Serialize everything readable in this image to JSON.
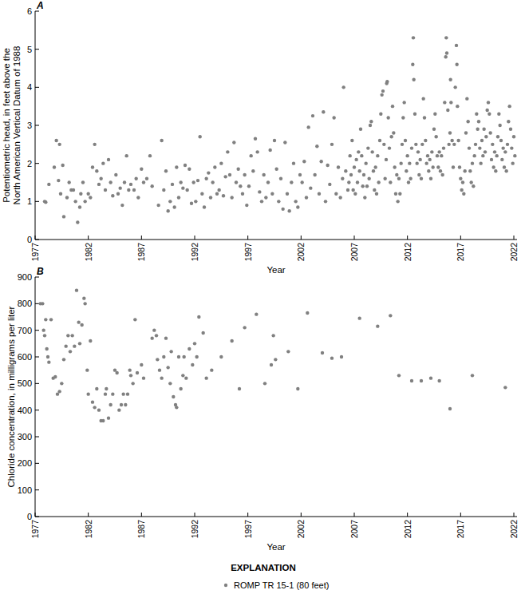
{
  "chart_data": [
    {
      "type": "scatter",
      "title": "A",
      "xlabel": "Year",
      "ylabel": "Potentiometric head, in feet above the North American Vertical Datum of 1988",
      "xlim": [
        1977,
        2022.3
      ],
      "xticks": [
        1977,
        1982,
        1987,
        1992,
        1997,
        2002,
        2007,
        2012,
        2017,
        2022
      ],
      "ylim": [
        0,
        6
      ],
      "yticks": [
        0,
        1,
        2,
        3,
        4,
        5,
        6
      ],
      "grid": false,
      "marker": "circle",
      "series": [
        {
          "color": "#808080",
          "x": [
            1977.9,
            1978.0,
            1978.3,
            1978.8,
            1979.0,
            1979.2,
            1979.3,
            1979.4,
            1979.6,
            1979.7,
            1980.0,
            1980.2,
            1980.4,
            1980.6,
            1980.8,
            1981.0,
            1981.2,
            1981.3,
            1981.5,
            1981.7,
            1982.0,
            1982.2,
            1982.4,
            1982.6,
            1982.8,
            1983.0,
            1983.2,
            1983.4,
            1983.6,
            1983.9,
            1984.1,
            1984.3,
            1984.6,
            1984.8,
            1985.0,
            1985.2,
            1985.4,
            1985.6,
            1985.8,
            1986.0,
            1986.3,
            1986.5,
            1986.7,
            1987.0,
            1987.2,
            1987.5,
            1987.8,
            1988.0,
            1988.6,
            1988.9,
            1989.1,
            1989.3,
            1989.5,
            1989.7,
            1989.9,
            1990.1,
            1990.3,
            1990.5,
            1990.7,
            1990.9,
            1991.1,
            1991.3,
            1991.5,
            1991.7,
            1991.9,
            1992.1,
            1992.3,
            1992.5,
            1992.7,
            1992.9,
            1993.1,
            1993.3,
            1993.5,
            1993.7,
            1993.9,
            1994.1,
            1994.3,
            1994.5,
            1994.7,
            1994.9,
            1995.1,
            1995.3,
            1995.5,
            1995.7,
            1995.9,
            1996.1,
            1996.3,
            1996.5,
            1996.7,
            1996.9,
            1997.1,
            1997.3,
            1997.5,
            1997.7,
            1997.9,
            1998.1,
            1998.3,
            1998.5,
            1998.7,
            1998.9,
            1999.1,
            1999.3,
            1999.5,
            1999.7,
            1999.9,
            2000.1,
            2000.3,
            2000.5,
            2000.7,
            2000.9,
            2001.1,
            2001.3,
            2001.5,
            2001.7,
            2001.9,
            2002.1,
            2002.3,
            2002.5,
            2002.7,
            2002.9,
            2003.1,
            2003.3,
            2003.5,
            2003.7,
            2003.9,
            2004.1,
            2004.3,
            2004.5,
            2004.7,
            2004.9,
            2005.1,
            2005.3,
            2005.5,
            2005.7,
            2005.9,
            2006.0,
            2006.2,
            2006.4,
            2006.5,
            2006.6,
            2006.7,
            2006.8,
            2006.9,
            2007.0,
            2007.1,
            2007.2,
            2007.3,
            2007.4,
            2007.5,
            2007.6,
            2007.7,
            2007.8,
            2007.9,
            2008.0,
            2008.1,
            2008.2,
            2008.3,
            2008.4,
            2008.5,
            2008.6,
            2008.7,
            2008.8,
            2008.9,
            2009.0,
            2009.1,
            2009.2,
            2009.3,
            2009.4,
            2009.5,
            2009.6,
            2009.7,
            2009.8,
            2009.9,
            2010.0,
            2010.05,
            2010.1,
            2010.2,
            2010.3,
            2010.4,
            2010.5,
            2010.6,
            2010.7,
            2010.8,
            2010.9,
            2011.0,
            2011.1,
            2011.2,
            2011.3,
            2011.4,
            2011.5,
            2011.6,
            2011.7,
            2011.8,
            2011.9,
            2012.0,
            2012.1,
            2012.2,
            2012.3,
            2012.4,
            2012.5,
            2012.55,
            2012.6,
            2012.7,
            2012.8,
            2012.9,
            2013.0,
            2013.1,
            2013.2,
            2013.3,
            2013.4,
            2013.5,
            2013.6,
            2013.7,
            2013.8,
            2013.9,
            2014.0,
            2014.1,
            2014.2,
            2014.3,
            2014.4,
            2014.5,
            2014.6,
            2014.7,
            2014.8,
            2014.9,
            2015.0,
            2015.1,
            2015.2,
            2015.3,
            2015.4,
            2015.5,
            2015.6,
            2015.65,
            2015.7,
            2015.8,
            2015.9,
            2016.0,
            2016.05,
            2016.1,
            2016.2,
            2016.3,
            2016.4,
            2016.5,
            2016.6,
            2016.65,
            2016.7,
            2016.8,
            2016.9,
            2017.0,
            2017.1,
            2017.2,
            2017.3,
            2017.4,
            2017.5,
            2017.6,
            2017.7,
            2017.8,
            2017.9,
            2018.0,
            2018.1,
            2018.2,
            2018.3,
            2018.4,
            2018.5,
            2018.6,
            2018.7,
            2018.8,
            2018.9,
            2019.0,
            2019.1,
            2019.2,
            2019.3,
            2019.4,
            2019.5,
            2019.6,
            2019.7,
            2019.8,
            2019.9,
            2020.0,
            2020.1,
            2020.2,
            2020.3,
            2020.4,
            2020.5,
            2020.6,
            2020.7,
            2020.8,
            2020.9,
            2021.0,
            2021.1,
            2021.2,
            2021.3,
            2021.4,
            2021.5,
            2021.6,
            2021.7,
            2021.8,
            2021.9,
            2022.0,
            2022.1
          ],
          "values": [
            1.0,
            0.98,
            1.45,
            1.9,
            2.6,
            1.55,
            2.5,
            1.2,
            1.95,
            0.6,
            1.1,
            1.5,
            1.3,
            1.3,
            1.0,
            0.45,
            0.85,
            1.2,
            1.5,
            1.0,
            1.2,
            1.1,
            1.9,
            2.5,
            1.8,
            1.45,
            1.6,
            2.0,
            1.3,
            2.1,
            1.5,
            1.15,
            1.7,
            1.2,
            1.35,
            0.9,
            1.5,
            2.2,
            1.3,
            1.45,
            1.3,
            1.6,
            1.1,
            1.85,
            1.5,
            1.6,
            2.2,
            1.4,
            0.9,
            2.6,
            1.3,
            1.8,
            0.75,
            1.0,
            1.45,
            0.85,
            1.9,
            1.1,
            1.5,
            1.35,
            1.95,
            1.3,
            1.85,
            0.95,
            1.5,
            1.0,
            1.55,
            2.7,
            1.2,
            0.85,
            1.6,
            1.75,
            1.1,
            1.5,
            1.9,
            1.2,
            1.3,
            2.0,
            1.15,
            1.65,
            2.3,
            1.7,
            1.1,
            2.55,
            1.5,
            1.85,
            1.4,
            1.2,
            1.7,
            0.9,
            1.4,
            2.2,
            1.8,
            2.65,
            2.3,
            1.25,
            1.0,
            1.7,
            1.1,
            1.5,
            2.35,
            1.2,
            2.6,
            1.85,
            1.0,
            1.6,
            0.8,
            2.55,
            1.2,
            0.75,
            1.5,
            2.0,
            1.0,
            0.85,
            1.7,
            1.5,
            2.05,
            1.1,
            2.95,
            1.35,
            3.25,
            1.7,
            2.45,
            1.2,
            2.05,
            3.35,
            1.0,
            1.95,
            1.45,
            2.5,
            3.2,
            1.2,
            1.9,
            1.1,
            1.6,
            4.0,
            1.8,
            1.3,
            1.5,
            2.2,
            1.7,
            2.6,
            1.3,
            1.9,
            1.2,
            2.1,
            1.5,
            2.3,
            1.8,
            2.9,
            2.2,
            1.4,
            1.7,
            1.1,
            2.0,
            1.4,
            2.4,
            1.6,
            3.0,
            3.1,
            2.3,
            1.8,
            1.3,
            1.9,
            1.2,
            2.2,
            1.5,
            2.6,
            3.3,
            3.8,
            3.9,
            2.5,
            1.6,
            2.1,
            4.1,
            4.15,
            3.2,
            2.4,
            1.5,
            2.7,
            3.5,
            2.8,
            1.9,
            1.2,
            1.7,
            1.0,
            1.6,
            1.2,
            2.0,
            2.5,
            3.2,
            3.6,
            2.6,
            1.8,
            2.2,
            1.5,
            2.0,
            1.6,
            2.4,
            4.6,
            5.3,
            4.2,
            3.3,
            2.5,
            2.0,
            2.3,
            1.7,
            2.1,
            1.6,
            2.5,
            3.7,
            3.2,
            2.6,
            2.0,
            2.2,
            1.8,
            2.1,
            1.6,
            2.3,
            1.9,
            2.9,
            3.3,
            2.7,
            2.2,
            1.9,
            2.3,
            1.8,
            2.2,
            1.7,
            2.4,
            3.6,
            4.8,
            5.3,
            4.9,
            3.4,
            2.5,
            2.8,
            4.2,
            3.6,
            2.6,
            1.9,
            2.5,
            4.0,
            5.1,
            4.6,
            3.5,
            2.6,
            1.9,
            1.6,
            1.3,
            1.5,
            1.2,
            1.8,
            2.8,
            3.7,
            3.1,
            2.4,
            1.8,
            1.5,
            2.0,
            1.4,
            2.2,
            2.5,
            3.3,
            2.9,
            3.1,
            2.4,
            2.0,
            2.6,
            2.2,
            2.9,
            2.3,
            2.7,
            3.4,
            3.6,
            3.3,
            2.8,
            2.1,
            2.5,
            1.9,
            2.3,
            1.8,
            2.2,
            2.7,
            3.3,
            3.0,
            2.6,
            2.1,
            2.4,
            1.9,
            2.3,
            1.8,
            2.5,
            3.1,
            3.5,
            2.9,
            2.4,
            2.0,
            2.7,
            2.2
          ]
        }
      ]
    },
    {
      "type": "scatter",
      "title": "B",
      "xlabel": "Year",
      "ylabel": "Chloride concentration, in milligrams per liter",
      "xlim": [
        1977,
        2022.3
      ],
      "xticks": [
        1977,
        1982,
        1987,
        1992,
        1997,
        2002,
        2007,
        2012,
        2017,
        2022
      ],
      "ylim": [
        0,
        900
      ],
      "yticks": [
        0,
        100,
        200,
        300,
        400,
        500,
        600,
        700,
        800,
        900
      ],
      "grid": false,
      "marker": "circle",
      "legend": "bottom",
      "legend_title": "EXPLANATION",
      "series": [
        {
          "name": "ROMP TR 15-1 (80 feet)",
          "color": "#808080",
          "x": [
            1977.5,
            1977.7,
            1977.8,
            1977.9,
            1978.0,
            1978.1,
            1978.2,
            1978.3,
            1978.5,
            1978.7,
            1978.9,
            1979.1,
            1979.3,
            1979.5,
            1979.7,
            1979.9,
            1980.1,
            1980.3,
            1980.5,
            1980.7,
            1980.9,
            1981.1,
            1981.2,
            1981.4,
            1981.6,
            1981.7,
            1981.9,
            1982.0,
            1982.2,
            1982.4,
            1982.6,
            1982.8,
            1983.0,
            1983.2,
            1983.4,
            1983.6,
            1983.7,
            1983.9,
            1984.1,
            1984.3,
            1984.5,
            1984.7,
            1984.9,
            1985.1,
            1985.3,
            1985.5,
            1985.7,
            1985.9,
            1986.0,
            1986.2,
            1986.4,
            1986.6,
            1987.0,
            1987.2,
            1988.0,
            1988.2,
            1988.4,
            1988.5,
            1988.7,
            1988.9,
            1989.1,
            1989.3,
            1989.5,
            1989.7,
            1989.8,
            1990.0,
            1990.2,
            1990.3,
            1990.5,
            1990.7,
            1990.9,
            1991.0,
            1991.2,
            1991.5,
            1991.8,
            1992.0,
            1992.2,
            1992.4,
            1992.8,
            1993.1,
            1993.6,
            1994.5,
            1995.5,
            1996.2,
            1996.7,
            1997.8,
            1998.6,
            1999.2,
            1999.4,
            1999.6,
            2000.8,
            2001.7,
            2002.6,
            2004.0,
            2004.9,
            2005.8,
            2007.5,
            2009.2,
            2010.4,
            2011.2,
            2012.4,
            2013.3,
            2014.2,
            2015.0,
            2016.0,
            2018.1,
            2021.2
          ],
          "values": [
            800,
            800,
            700,
            680,
            740,
            630,
            600,
            580,
            740,
            520,
            525,
            460,
            470,
            500,
            590,
            640,
            680,
            620,
            680,
            640,
            850,
            730,
            650,
            720,
            820,
            800,
            550,
            460,
            660,
            430,
            410,
            480,
            400,
            360,
            360,
            460,
            480,
            370,
            420,
            460,
            550,
            540,
            400,
            420,
            460,
            420,
            460,
            550,
            530,
            500,
            740,
            540,
            570,
            520,
            670,
            700,
            680,
            590,
            550,
            520,
            600,
            670,
            560,
            500,
            620,
            450,
            420,
            410,
            600,
            480,
            530,
            600,
            520,
            630,
            570,
            650,
            600,
            750,
            690,
            520,
            550,
            600,
            660,
            480,
            710,
            760,
            500,
            570,
            680,
            590,
            620,
            480,
            765,
            615,
            595,
            600,
            745,
            715,
            755,
            530,
            510,
            510,
            520,
            510,
            405,
            530,
            485
          ]
        }
      ]
    }
  ]
}
